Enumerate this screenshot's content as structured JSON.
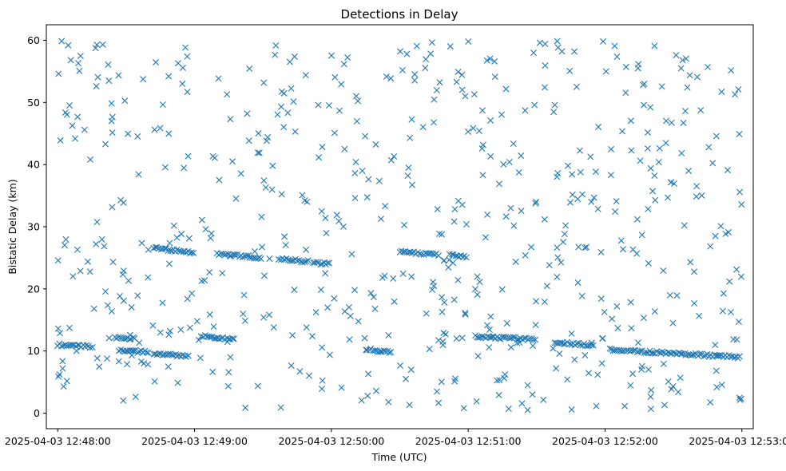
{
  "chart_data": {
    "type": "scatter",
    "title": "Detections in Delay",
    "xlabel": "Time (UTC)",
    "ylabel": "Bistatic Delay (km)",
    "xlim": [
      "2025-04-03 12:47:55",
      "2025-04-03 12:53:05"
    ],
    "ylim": [
      -2.5,
      62.5
    ],
    "x_ticks": [
      "2025-04-03 12:48:00",
      "2025-04-03 12:49:00",
      "2025-04-03 12:50:00",
      "2025-04-03 12:51:00",
      "2025-04-03 12:52:00",
      "2025-04-03 12:53:00"
    ],
    "y_ticks": [
      0,
      10,
      20,
      30,
      40,
      50,
      60
    ],
    "marker": "x",
    "color": "#1f77b4",
    "grid": false,
    "legend": "none",
    "series_summary": {
      "tracks": [
        {
          "start": "2025-04-03 12:48:00",
          "end": "2025-04-03 12:48:16",
          "delay_start_km": 11.0,
          "delay_end_km": 10.7
        },
        {
          "start": "2025-04-03 12:48:25",
          "end": "2025-04-03 12:48:34",
          "delay_start_km": 12.1,
          "delay_end_km": 12.0
        },
        {
          "start": "2025-04-03 12:48:27",
          "end": "2025-04-03 12:48:40",
          "delay_start_km": 10.1,
          "delay_end_km": 9.8
        },
        {
          "start": "2025-04-03 12:48:42",
          "end": "2025-04-03 12:48:58",
          "delay_start_km": 9.6,
          "delay_end_km": 9.1
        },
        {
          "start": "2025-04-03 12:48:42",
          "end": "2025-04-03 12:49:00",
          "delay_start_km": 26.6,
          "delay_end_km": 25.8
        },
        {
          "start": "2025-04-03 12:49:03",
          "end": "2025-04-03 12:49:18",
          "delay_start_km": 12.4,
          "delay_end_km": 11.8
        },
        {
          "start": "2025-04-03 12:49:10",
          "end": "2025-04-03 12:49:30",
          "delay_start_km": 25.6,
          "delay_end_km": 25.0
        },
        {
          "start": "2025-04-03 12:49:37",
          "end": "2025-04-03 12:49:50",
          "delay_start_km": 24.8,
          "delay_end_km": 24.4
        },
        {
          "start": "2025-04-03 12:49:52",
          "end": "2025-04-03 12:50:00",
          "delay_start_km": 24.2,
          "delay_end_km": 24.0
        },
        {
          "start": "2025-04-03 12:50:15",
          "end": "2025-04-03 12:50:27",
          "delay_start_km": 10.3,
          "delay_end_km": 9.7
        },
        {
          "start": "2025-04-03 12:50:30",
          "end": "2025-04-03 12:50:47",
          "delay_start_km": 26.0,
          "delay_end_km": 25.5
        },
        {
          "start": "2025-04-03 12:50:52",
          "end": "2025-04-03 12:51:00",
          "delay_start_km": 25.4,
          "delay_end_km": 25.2
        },
        {
          "start": "2025-04-03 12:51:03",
          "end": "2025-04-03 12:51:30",
          "delay_start_km": 12.3,
          "delay_end_km": 11.9
        },
        {
          "start": "2025-04-03 12:51:38",
          "end": "2025-04-03 12:51:55",
          "delay_start_km": 11.4,
          "delay_end_km": 10.9
        },
        {
          "start": "2025-04-03 12:52:02",
          "end": "2025-04-03 12:52:40",
          "delay_start_km": 10.2,
          "delay_end_km": 9.4
        },
        {
          "start": "2025-04-03 12:52:40",
          "end": "2025-04-03 12:53:00",
          "delay_start_km": 9.4,
          "delay_end_km": 9.0
        }
      ],
      "background_clutter": {
        "start": "2025-04-03 12:48:00",
        "end": "2025-04-03 12:53:00",
        "delay_min_km": 0.5,
        "delay_max_km": 60.0,
        "approx_points": 600
      }
    }
  }
}
